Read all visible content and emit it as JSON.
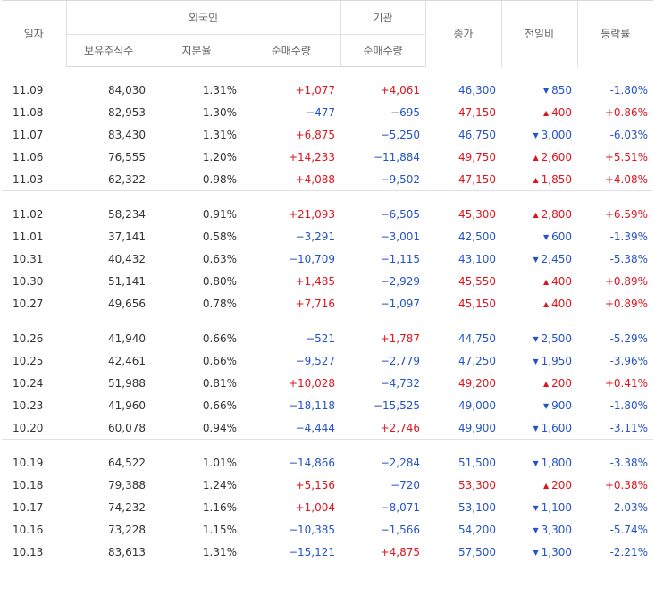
{
  "headers": {
    "date": "일자",
    "foreign": "외국인",
    "institution": "기관",
    "close": "종가",
    "change": "전일비",
    "rate": "등락률",
    "holdings": "보유주식수",
    "ratio": "지분율",
    "foreign_net": "순매수량",
    "inst_net": "순매수량"
  },
  "groups": [
    [
      {
        "date": "11.09",
        "holdings": "84,030",
        "ratio": "1.31%",
        "foreign_net": "+1,077",
        "inst_net": "+4,061",
        "close": "46,300",
        "dir": "down",
        "change": "850",
        "rate": "-1.80%"
      },
      {
        "date": "11.08",
        "holdings": "82,953",
        "ratio": "1.30%",
        "foreign_net": "−477",
        "inst_net": "−695",
        "close": "47,150",
        "dir": "up",
        "change": "400",
        "rate": "+0.86%"
      },
      {
        "date": "11.07",
        "holdings": "83,430",
        "ratio": "1.31%",
        "foreign_net": "+6,875",
        "inst_net": "−5,250",
        "close": "46,750",
        "dir": "down",
        "change": "3,000",
        "rate": "-6.03%"
      },
      {
        "date": "11.06",
        "holdings": "76,555",
        "ratio": "1.20%",
        "foreign_net": "+14,233",
        "inst_net": "−11,884",
        "close": "49,750",
        "dir": "up",
        "change": "2,600",
        "rate": "+5.51%"
      },
      {
        "date": "11.03",
        "holdings": "62,322",
        "ratio": "0.98%",
        "foreign_net": "+4,088",
        "inst_net": "−9,502",
        "close": "47,150",
        "dir": "up",
        "change": "1,850",
        "rate": "+4.08%"
      }
    ],
    [
      {
        "date": "11.02",
        "holdings": "58,234",
        "ratio": "0.91%",
        "foreign_net": "+21,093",
        "inst_net": "−6,505",
        "close": "45,300",
        "dir": "up",
        "change": "2,800",
        "rate": "+6.59%"
      },
      {
        "date": "11.01",
        "holdings": "37,141",
        "ratio": "0.58%",
        "foreign_net": "−3,291",
        "inst_net": "−3,001",
        "close": "42,500",
        "dir": "down",
        "change": "600",
        "rate": "-1.39%"
      },
      {
        "date": "10.31",
        "holdings": "40,432",
        "ratio": "0.63%",
        "foreign_net": "−10,709",
        "inst_net": "−1,115",
        "close": "43,100",
        "dir": "down",
        "change": "2,450",
        "rate": "-5.38%"
      },
      {
        "date": "10.30",
        "holdings": "51,141",
        "ratio": "0.80%",
        "foreign_net": "+1,485",
        "inst_net": "−2,929",
        "close": "45,550",
        "dir": "up",
        "change": "400",
        "rate": "+0.89%"
      },
      {
        "date": "10.27",
        "holdings": "49,656",
        "ratio": "0.78%",
        "foreign_net": "+7,716",
        "inst_net": "−1,097",
        "close": "45,150",
        "dir": "up",
        "change": "400",
        "rate": "+0.89%"
      }
    ],
    [
      {
        "date": "10.26",
        "holdings": "41,940",
        "ratio": "0.66%",
        "foreign_net": "−521",
        "inst_net": "+1,787",
        "close": "44,750",
        "dir": "down",
        "change": "2,500",
        "rate": "-5.29%"
      },
      {
        "date": "10.25",
        "holdings": "42,461",
        "ratio": "0.66%",
        "foreign_net": "−9,527",
        "inst_net": "−2,779",
        "close": "47,250",
        "dir": "down",
        "change": "1,950",
        "rate": "-3.96%"
      },
      {
        "date": "10.24",
        "holdings": "51,988",
        "ratio": "0.81%",
        "foreign_net": "+10,028",
        "inst_net": "−4,732",
        "close": "49,200",
        "dir": "up",
        "change": "200",
        "rate": "+0.41%"
      },
      {
        "date": "10.23",
        "holdings": "41,960",
        "ratio": "0.66%",
        "foreign_net": "−18,118",
        "inst_net": "−15,525",
        "close": "49,000",
        "dir": "down",
        "change": "900",
        "rate": "-1.80%"
      },
      {
        "date": "10.20",
        "holdings": "60,078",
        "ratio": "0.94%",
        "foreign_net": "−4,444",
        "inst_net": "+2,746",
        "close": "49,900",
        "dir": "down",
        "change": "1,600",
        "rate": "-3.11%"
      }
    ],
    [
      {
        "date": "10.19",
        "holdings": "64,522",
        "ratio": "1.01%",
        "foreign_net": "−14,866",
        "inst_net": "−2,284",
        "close": "51,500",
        "dir": "down",
        "change": "1,800",
        "rate": "-3.38%"
      },
      {
        "date": "10.18",
        "holdings": "79,388",
        "ratio": "1.24%",
        "foreign_net": "+5,156",
        "inst_net": "−720",
        "close": "53,300",
        "dir": "up",
        "change": "200",
        "rate": "+0.38%"
      },
      {
        "date": "10.17",
        "holdings": "74,232",
        "ratio": "1.16%",
        "foreign_net": "+1,004",
        "inst_net": "−8,071",
        "close": "53,100",
        "dir": "down",
        "change": "1,100",
        "rate": "-2.03%"
      },
      {
        "date": "10.16",
        "holdings": "73,228",
        "ratio": "1.15%",
        "foreign_net": "−10,385",
        "inst_net": "−1,566",
        "close": "54,200",
        "dir": "down",
        "change": "3,300",
        "rate": "-5.74%"
      },
      {
        "date": "10.13",
        "holdings": "83,613",
        "ratio": "1.31%",
        "foreign_net": "−15,121",
        "inst_net": "+4,875",
        "close": "57,500",
        "dir": "down",
        "change": "1,300",
        "rate": "-2.21%"
      }
    ]
  ],
  "colors": {
    "up": "#e0141e",
    "down": "#2554c7"
  },
  "icons": {
    "up": "triangle-up-icon",
    "down": "triangle-down-icon"
  }
}
